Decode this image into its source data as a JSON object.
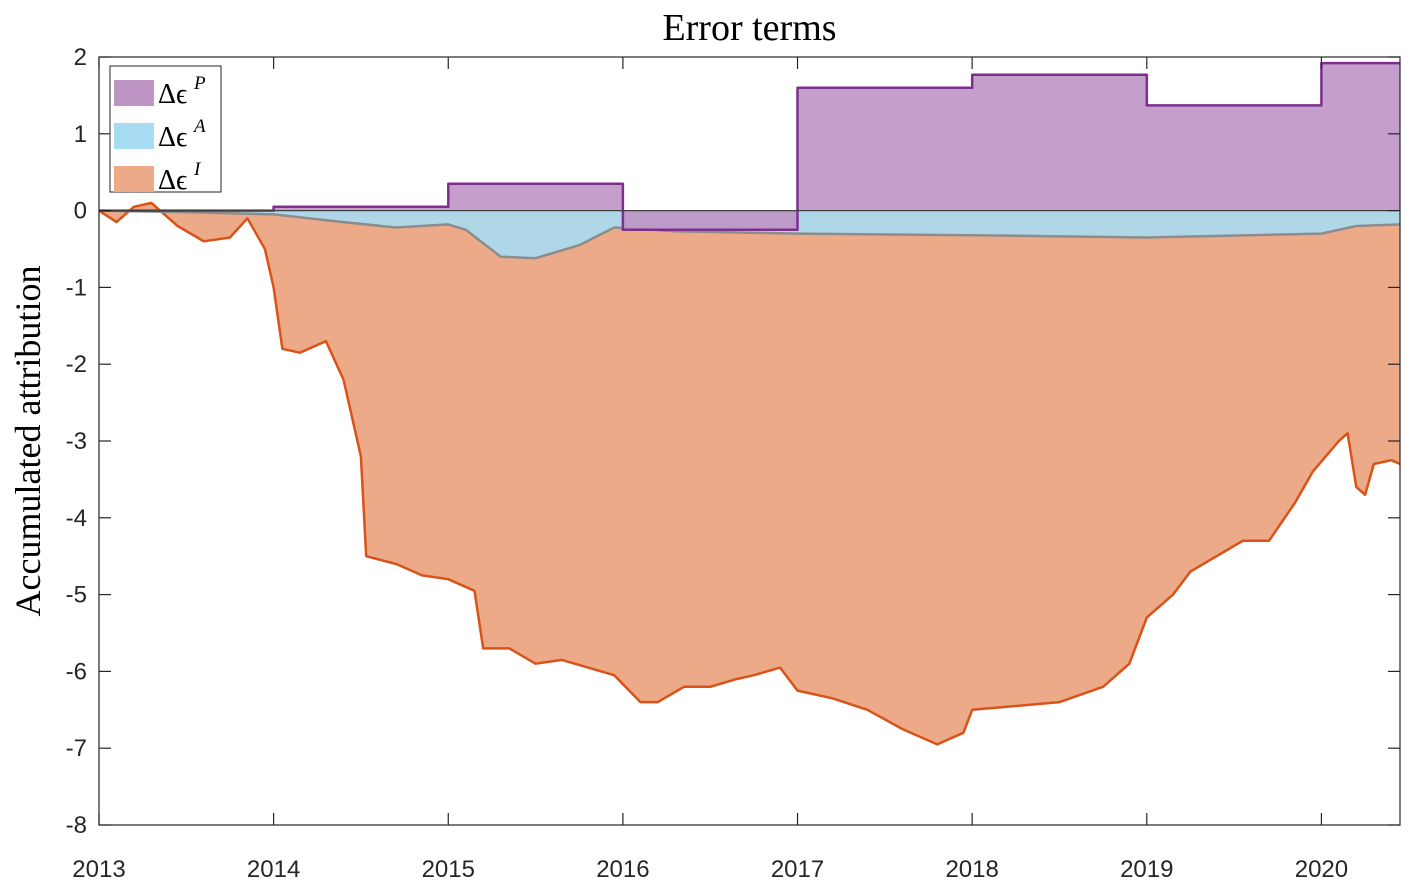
{
  "chart_data": {
    "type": "area",
    "title": "Error terms",
    "xlabel": "",
    "ylabel": "Accumulated attribution",
    "xlim": [
      2013,
      2020.45
    ],
    "ylim": [
      -8,
      2
    ],
    "xticks": [
      2013,
      2014,
      2015,
      2016,
      2017,
      2018,
      2019,
      2020
    ],
    "xtick_labels": [
      "2013",
      "2014",
      "2015",
      "2016",
      "2017",
      "2018",
      "2019",
      "2020"
    ],
    "yticks": [
      2,
      1,
      0,
      -1,
      -2,
      -3,
      -4,
      -5,
      -6,
      -7,
      -8
    ],
    "ytick_labels": [
      "2",
      "1",
      "0",
      "-1",
      "-2",
      "-3",
      "-4",
      "-5",
      "-6",
      "-7",
      "-8"
    ],
    "grid": false,
    "legend_position": "top-left",
    "series": [
      {
        "name": "Δϵ^P",
        "legend_base": "Δϵ",
        "legend_sup": "P",
        "fill": "#be95c5",
        "line": "#7e2f8e",
        "kind": "step",
        "points": [
          [
            2013.0,
            0.0
          ],
          [
            2014.0,
            0.05
          ],
          [
            2015.0,
            0.35
          ],
          [
            2016.0,
            -0.25
          ],
          [
            2017.0,
            1.6
          ],
          [
            2018.0,
            1.77
          ],
          [
            2019.0,
            1.37
          ],
          [
            2020.0,
            1.92
          ],
          [
            2020.45,
            1.92
          ]
        ]
      },
      {
        "name": "Δϵ^A",
        "legend_base": "Δϵ",
        "legend_sup": "A",
        "fill": "#a8dcf3",
        "line": "#8c8c8c",
        "kind": "line",
        "points": [
          [
            2013.0,
            0.0
          ],
          [
            2013.5,
            -0.02
          ],
          [
            2014.0,
            -0.05
          ],
          [
            2014.4,
            -0.15
          ],
          [
            2014.7,
            -0.22
          ],
          [
            2015.0,
            -0.18
          ],
          [
            2015.1,
            -0.25
          ],
          [
            2015.3,
            -0.6
          ],
          [
            2015.5,
            -0.62
          ],
          [
            2015.75,
            -0.45
          ],
          [
            2015.95,
            -0.22
          ],
          [
            2016.3,
            -0.27
          ],
          [
            2017.0,
            -0.3
          ],
          [
            2018.0,
            -0.32
          ],
          [
            2019.0,
            -0.35
          ],
          [
            2020.0,
            -0.3
          ],
          [
            2020.2,
            -0.2
          ],
          [
            2020.45,
            -0.18
          ]
        ]
      },
      {
        "name": "Δϵ^I",
        "legend_base": "Δϵ",
        "legend_sup": "I",
        "fill": "#edaa89",
        "line": "#d95319",
        "kind": "line",
        "points": [
          [
            2013.0,
            0.0
          ],
          [
            2013.1,
            -0.15
          ],
          [
            2013.2,
            0.05
          ],
          [
            2013.3,
            0.1
          ],
          [
            2013.45,
            -0.2
          ],
          [
            2013.6,
            -0.4
          ],
          [
            2013.75,
            -0.35
          ],
          [
            2013.85,
            -0.1
          ],
          [
            2013.95,
            -0.5
          ],
          [
            2014.0,
            -1.0
          ],
          [
            2014.05,
            -1.8
          ],
          [
            2014.15,
            -1.85
          ],
          [
            2014.25,
            -1.75
          ],
          [
            2014.3,
            -1.7
          ],
          [
            2014.4,
            -2.2
          ],
          [
            2014.45,
            -2.7
          ],
          [
            2014.5,
            -3.2
          ],
          [
            2014.53,
            -4.5
          ],
          [
            2014.7,
            -4.6
          ],
          [
            2014.85,
            -4.75
          ],
          [
            2015.0,
            -4.8
          ],
          [
            2015.15,
            -4.95
          ],
          [
            2015.2,
            -5.7
          ],
          [
            2015.35,
            -5.7
          ],
          [
            2015.5,
            -5.9
          ],
          [
            2015.65,
            -5.85
          ],
          [
            2015.8,
            -5.95
          ],
          [
            2015.95,
            -6.05
          ],
          [
            2016.1,
            -6.4
          ],
          [
            2016.2,
            -6.4
          ],
          [
            2016.35,
            -6.2
          ],
          [
            2016.5,
            -6.2
          ],
          [
            2016.65,
            -6.1
          ],
          [
            2016.75,
            -6.05
          ],
          [
            2016.9,
            -5.95
          ],
          [
            2017.0,
            -6.25
          ],
          [
            2017.2,
            -6.35
          ],
          [
            2017.4,
            -6.5
          ],
          [
            2017.6,
            -6.75
          ],
          [
            2017.8,
            -6.95
          ],
          [
            2017.95,
            -6.8
          ],
          [
            2018.0,
            -6.5
          ],
          [
            2018.25,
            -6.45
          ],
          [
            2018.5,
            -6.4
          ],
          [
            2018.75,
            -6.2
          ],
          [
            2018.9,
            -5.9
          ],
          [
            2019.0,
            -5.3
          ],
          [
            2019.15,
            -5.0
          ],
          [
            2019.25,
            -4.7
          ],
          [
            2019.4,
            -4.5
          ],
          [
            2019.55,
            -4.3
          ],
          [
            2019.7,
            -4.3
          ],
          [
            2019.85,
            -3.8
          ],
          [
            2019.95,
            -3.4
          ],
          [
            2020.1,
            -3.0
          ],
          [
            2020.15,
            -2.9
          ],
          [
            2020.2,
            -3.6
          ],
          [
            2020.25,
            -3.7
          ],
          [
            2020.3,
            -3.3
          ],
          [
            2020.4,
            -3.25
          ],
          [
            2020.45,
            -3.3
          ]
        ]
      }
    ]
  }
}
